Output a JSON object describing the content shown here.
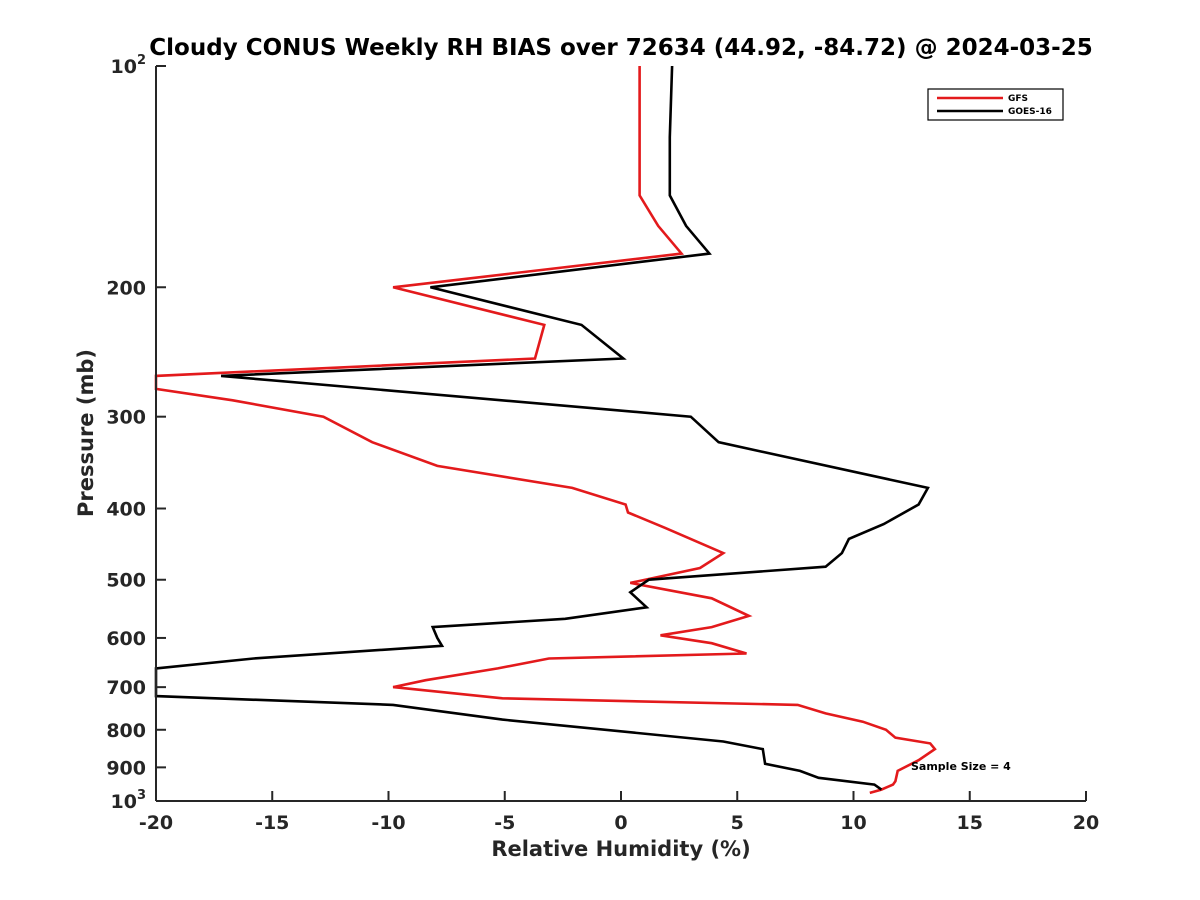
{
  "chart_data": {
    "type": "line",
    "title": "Cloudy CONUS Weekly RH BIAS over 72634 (44.92, -84.72) @ 2024-03-25",
    "xlabel": "Relative Humidity (%)",
    "ylabel": "Pressure (mb)",
    "xlim": [
      -20,
      20
    ],
    "ylim": [
      100,
      1000
    ],
    "y_scale": "log",
    "y_reversed": true,
    "x_ticks": [
      -20,
      -15,
      -10,
      -5,
      0,
      5,
      10,
      15,
      20
    ],
    "y_ticks": [
      {
        "value": 100,
        "base": "10",
        "exp": "2"
      },
      {
        "value": 200,
        "label": "200"
      },
      {
        "value": 300,
        "label": "300"
      },
      {
        "value": 400,
        "label": "400"
      },
      {
        "value": 500,
        "label": "500"
      },
      {
        "value": 600,
        "label": "600"
      },
      {
        "value": 700,
        "label": "700"
      },
      {
        "value": 800,
        "label": "800"
      },
      {
        "value": 900,
        "label": "900"
      },
      {
        "value": 1000,
        "base": "10",
        "exp": "3"
      }
    ],
    "grid": false,
    "legend_position": "top-right",
    "annotation": "Sample Size = 4",
    "series": [
      {
        "name": "GFS",
        "color": "#e31a1c",
        "points": [
          [
            0.8,
            100
          ],
          [
            0.8,
            125
          ],
          [
            0.8,
            150
          ],
          [
            1.6,
            165
          ],
          [
            2.6,
            180
          ],
          [
            -9.8,
            200
          ],
          [
            -3.3,
            225
          ],
          [
            -3.7,
            250
          ],
          [
            -20.0,
            264
          ],
          [
            -20.0,
            275
          ],
          [
            -16.7,
            285
          ],
          [
            -12.8,
            300
          ],
          [
            -10.7,
            325
          ],
          [
            -7.9,
            350
          ],
          [
            -2.1,
            375
          ],
          [
            0.2,
            395
          ],
          [
            0.3,
            405
          ],
          [
            1.9,
            425
          ],
          [
            4.4,
            460
          ],
          [
            3.4,
            482
          ],
          [
            0.4,
            505
          ],
          [
            3.9,
            530
          ],
          [
            5.5,
            560
          ],
          [
            3.9,
            580
          ],
          [
            1.7,
            595
          ],
          [
            3.9,
            610
          ],
          [
            5.4,
            630
          ],
          [
            -3.1,
            640
          ],
          [
            -5.3,
            660
          ],
          [
            -8.4,
            685
          ],
          [
            -9.8,
            700
          ],
          [
            -5.1,
            725
          ],
          [
            7.6,
            740
          ],
          [
            8.8,
            760
          ],
          [
            10.4,
            780
          ],
          [
            11.4,
            800
          ],
          [
            11.8,
            820
          ],
          [
            13.3,
            835
          ],
          [
            13.5,
            850
          ],
          [
            12.8,
            880
          ],
          [
            11.9,
            910
          ],
          [
            11.8,
            940
          ],
          [
            11.7,
            950
          ],
          [
            11.2,
            965
          ],
          [
            10.7,
            975
          ]
        ]
      },
      {
        "name": "GOES-16",
        "color": "#000000",
        "points": [
          [
            2.2,
            100
          ],
          [
            2.1,
            125
          ],
          [
            2.1,
            150
          ],
          [
            2.8,
            165
          ],
          [
            3.8,
            180
          ],
          [
            -8.2,
            200
          ],
          [
            -1.7,
            225
          ],
          [
            0.1,
            250
          ],
          [
            -17.2,
            264
          ],
          [
            3.0,
            300
          ],
          [
            4.2,
            325
          ],
          [
            13.2,
            375
          ],
          [
            12.8,
            395
          ],
          [
            11.3,
            420
          ],
          [
            9.8,
            440
          ],
          [
            9.5,
            460
          ],
          [
            8.8,
            480
          ],
          [
            1.2,
            500
          ],
          [
            0.4,
            520
          ],
          [
            1.1,
            545
          ],
          [
            -2.4,
            565
          ],
          [
            -8.1,
            580
          ],
          [
            -7.9,
            600
          ],
          [
            -7.7,
            615
          ],
          [
            -15.8,
            640
          ],
          [
            -20.0,
            660
          ],
          [
            -20.0,
            720
          ],
          [
            -9.8,
            740
          ],
          [
            -5.1,
            775
          ],
          [
            4.4,
            830
          ],
          [
            6.1,
            850
          ],
          [
            6.2,
            890
          ],
          [
            7.7,
            910
          ],
          [
            8.5,
            930
          ],
          [
            10.9,
            950
          ],
          [
            11.2,
            965
          ]
        ]
      }
    ]
  }
}
